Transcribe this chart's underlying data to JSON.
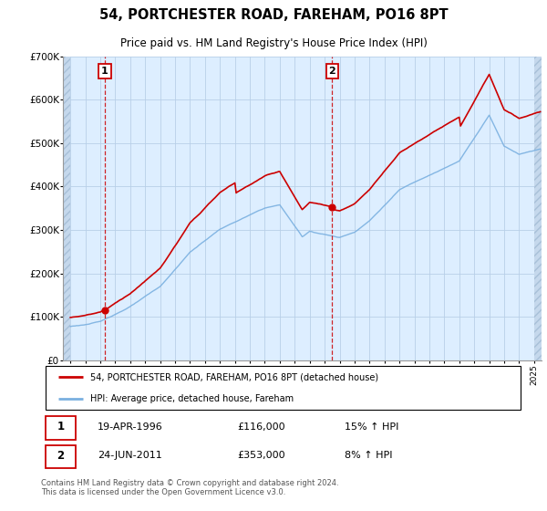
{
  "title": "54, PORTCHESTER ROAD, FAREHAM, PO16 8PT",
  "subtitle": "Price paid vs. HM Land Registry's House Price Index (HPI)",
  "ylim": [
    0,
    700000
  ],
  "yticks": [
    0,
    100000,
    200000,
    300000,
    400000,
    500000,
    600000,
    700000
  ],
  "ytick_labels": [
    "£0",
    "£100K",
    "£200K",
    "£300K",
    "£400K",
    "£500K",
    "£600K",
    "£700K"
  ],
  "hpi_color": "#7ab0e0",
  "price_color": "#cc0000",
  "sale1_x": 1996.3,
  "sale1_y": 116000,
  "sale2_x": 2011.5,
  "sale2_y": 353000,
  "sale1_date": "19-APR-1996",
  "sale1_price": "£116,000",
  "sale1_hpi": "15% ↑ HPI",
  "sale2_date": "24-JUN-2011",
  "sale2_price": "£353,000",
  "sale2_hpi": "8% ↑ HPI",
  "legend_line1": "54, PORTCHESTER ROAD, FAREHAM, PO16 8PT (detached house)",
  "legend_line2": "HPI: Average price, detached house, Fareham",
  "footer": "Contains HM Land Registry data © Crown copyright and database right 2024.\nThis data is licensed under the Open Government Licence v3.0.",
  "bg_color": "#ddeeff",
  "grid_color": "#b8cfe8",
  "xmin": 1993.5,
  "xmax": 2025.5
}
